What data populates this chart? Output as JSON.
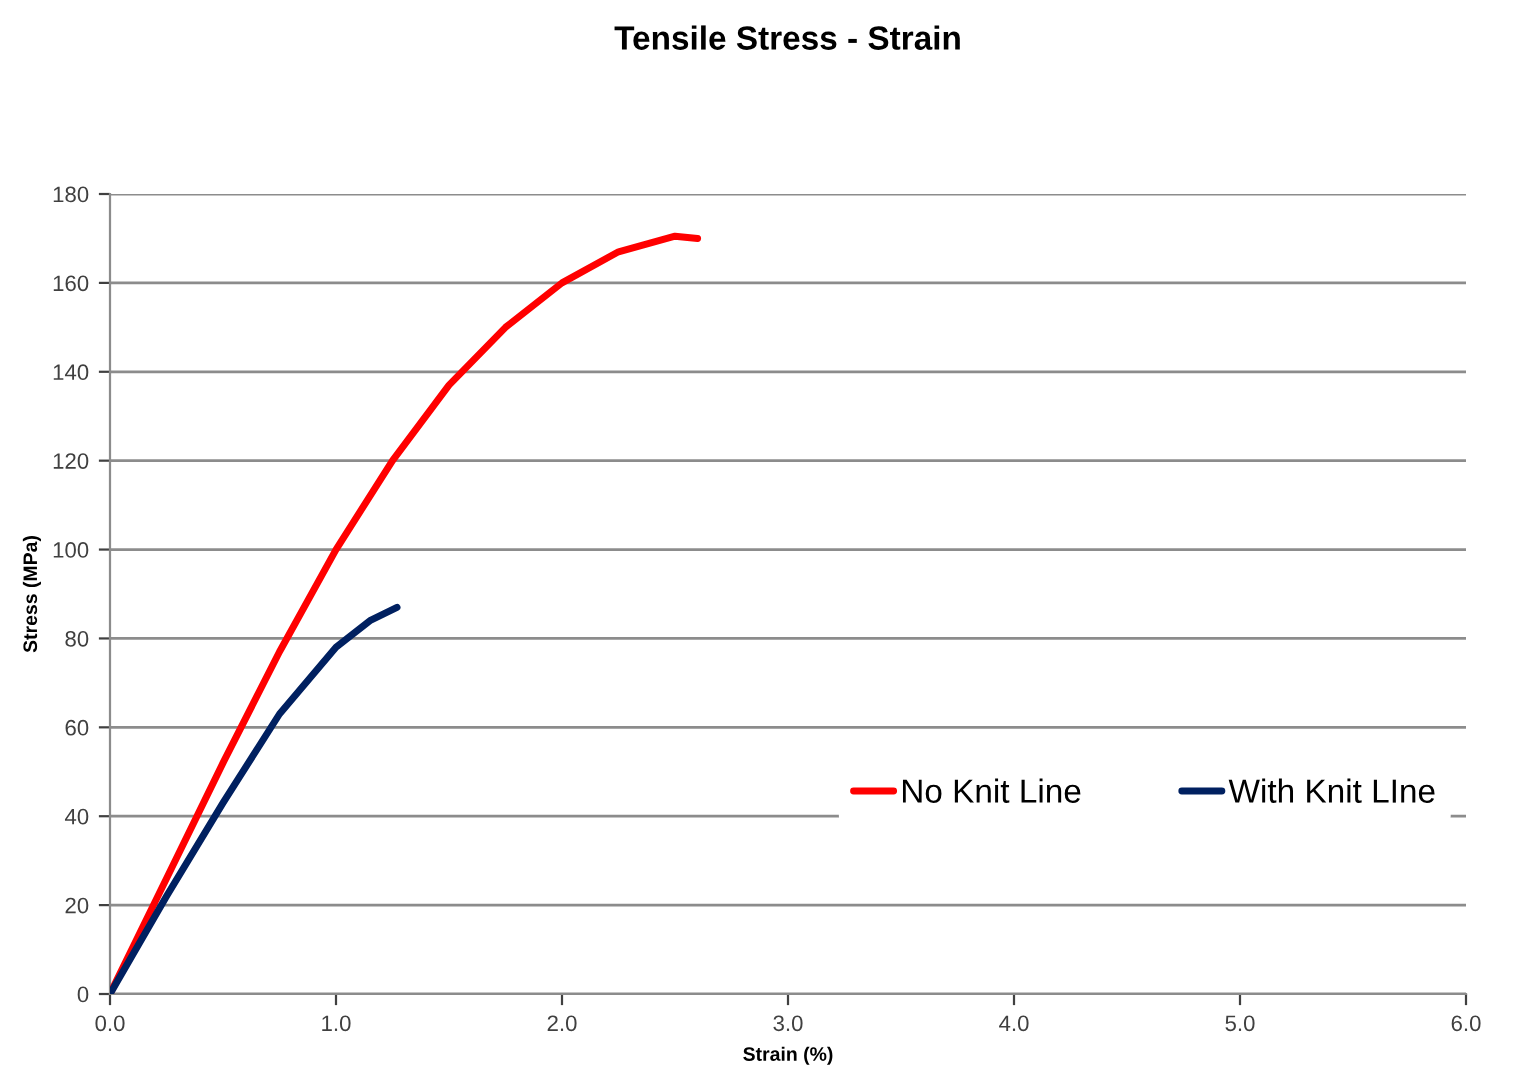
{
  "chart_data": {
    "type": "line",
    "title": "Tensile Stress - Strain",
    "xlabel": "Strain (%)",
    "ylabel": "Stress (MPa)",
    "series": [
      {
        "name": "No Knit Line",
        "color": "#ff0000",
        "x": [
          0,
          0.25,
          0.5,
          0.75,
          1.0,
          1.25,
          1.5,
          1.75,
          2.0,
          2.25,
          2.5,
          2.6
        ],
        "values": [
          0,
          26,
          52,
          77,
          100,
          120,
          137,
          150,
          160,
          167,
          170.5,
          170
        ]
      },
      {
        "name": "With Knit LIne",
        "color": "#002060",
        "x": [
          0,
          0.25,
          0.5,
          0.75,
          1.0,
          1.15,
          1.27
        ],
        "values": [
          0,
          22,
          43,
          63,
          78,
          84,
          87
        ]
      }
    ],
    "xlim": [
      0,
      6
    ],
    "xticks": [
      {
        "value": 0,
        "label": "0.0"
      },
      {
        "value": 1,
        "label": "1.0"
      },
      {
        "value": 2,
        "label": "2.0"
      },
      {
        "value": 3,
        "label": "3.0"
      },
      {
        "value": 4,
        "label": "4.0"
      },
      {
        "value": 5,
        "label": "5.0"
      },
      {
        "value": 6,
        "label": "6.0"
      }
    ],
    "ylim": [
      0,
      180
    ],
    "yticks": [
      0,
      20,
      40,
      60,
      80,
      100,
      120,
      140,
      160,
      180
    ],
    "grid": "y",
    "legend": "right",
    "marker": "none",
    "line_style": "solid"
  }
}
